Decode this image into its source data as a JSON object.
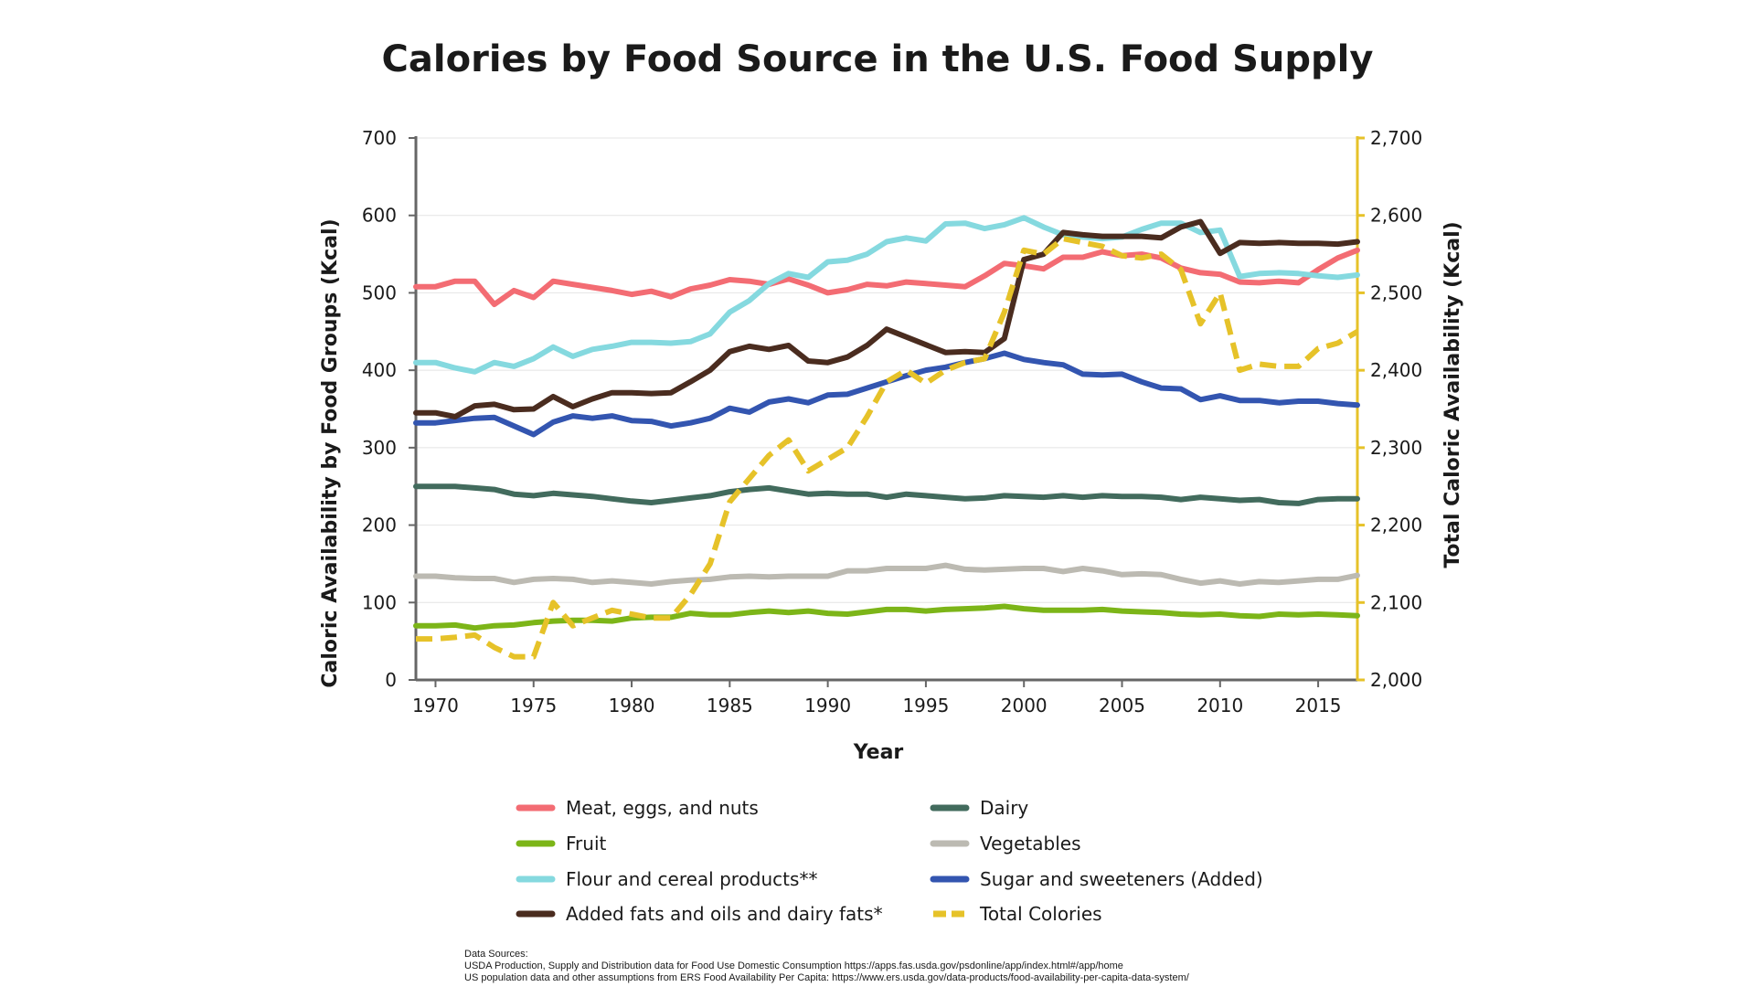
{
  "chart_data": {
    "type": "line",
    "title": "Calories by Food Source in the U.S. Food Supply",
    "xlabel": "Year",
    "ylabel": "Caloric Availability by Food Groups (Kcal)",
    "y2label": "Total Caloric Availability (Kcal)",
    "xlim": [
      1969,
      2017
    ],
    "ylim": [
      0,
      700
    ],
    "y2lim": [
      2000,
      2700
    ],
    "x_ticks": [
      1970,
      1975,
      1980,
      1985,
      1990,
      1995,
      2000,
      2005,
      2010,
      2015
    ],
    "y_ticks": [
      "0",
      "100",
      "200",
      "300",
      "400",
      "500",
      "600",
      "700"
    ],
    "y2_ticks": [
      "2,000",
      "2,100",
      "2,200",
      "2,300",
      "2,400",
      "2,500",
      "2,600",
      "2,700"
    ],
    "grid": true,
    "legend_position": "bottom",
    "x": [
      1969,
      1970,
      1971,
      1972,
      1973,
      1974,
      1975,
      1976,
      1977,
      1978,
      1979,
      1980,
      1981,
      1982,
      1983,
      1984,
      1985,
      1986,
      1987,
      1988,
      1989,
      1990,
      1991,
      1992,
      1993,
      1994,
      1995,
      1996,
      1997,
      1998,
      1999,
      2000,
      2001,
      2002,
      2003,
      2004,
      2005,
      2006,
      2007,
      2008,
      2009,
      2010,
      2011,
      2012,
      2013,
      2014,
      2015,
      2016,
      2017
    ],
    "series": [
      {
        "name": "Meat, eggs, and nuts",
        "color": "#f36c73",
        "axis": "left",
        "dashed": false,
        "values": [
          508,
          508,
          515,
          515,
          485,
          503,
          494,
          515,
          511,
          507,
          503,
          498,
          502,
          495,
          505,
          510,
          517,
          515,
          511,
          518,
          510,
          500,
          504,
          511,
          509,
          514,
          512,
          510,
          508,
          522,
          538,
          535,
          531,
          546,
          546,
          553,
          548,
          550,
          545,
          532,
          526,
          524,
          514,
          513,
          515,
          513,
          530,
          545,
          555
        ]
      },
      {
        "name": "Dairy",
        "color": "#426b5d",
        "axis": "left",
        "dashed": false,
        "values": [
          250,
          250,
          250,
          248,
          246,
          240,
          238,
          241,
          239,
          237,
          234,
          231,
          229,
          232,
          235,
          238,
          243,
          246,
          248,
          244,
          240,
          241,
          240,
          240,
          236,
          240,
          238,
          236,
          234,
          235,
          238,
          237,
          236,
          238,
          236,
          238,
          237,
          237,
          236,
          233,
          236,
          234,
          232,
          233,
          229,
          228,
          233,
          234,
          234
        ]
      },
      {
        "name": "Fruit",
        "color": "#7cb518",
        "axis": "left",
        "dashed": false,
        "values": [
          70,
          70,
          71,
          67,
          70,
          71,
          74,
          76,
          77,
          77,
          76,
          80,
          81,
          81,
          86,
          84,
          84,
          87,
          89,
          87,
          89,
          86,
          85,
          88,
          91,
          91,
          89,
          91,
          92,
          93,
          95,
          92,
          90,
          90,
          90,
          91,
          89,
          88,
          87,
          85,
          84,
          85,
          83,
          82,
          85,
          84,
          85,
          84,
          83
        ]
      },
      {
        "name": "Vegetables",
        "color": "#bcbab2",
        "axis": "left",
        "dashed": false,
        "values": [
          134,
          134,
          132,
          131,
          131,
          126,
          130,
          131,
          130,
          126,
          128,
          126,
          124,
          127,
          129,
          130,
          133,
          134,
          133,
          134,
          134,
          134,
          141,
          141,
          144,
          144,
          144,
          148,
          143,
          142,
          143,
          144,
          144,
          140,
          144,
          141,
          136,
          137,
          136,
          130,
          125,
          128,
          124,
          127,
          126,
          128,
          130,
          130,
          135
        ]
      },
      {
        "name": "Flour and cereal products**",
        "color": "#85d9df",
        "axis": "left",
        "dashed": false,
        "values": [
          410,
          410,
          403,
          398,
          410,
          405,
          415,
          430,
          418,
          427,
          431,
          436,
          436,
          435,
          437,
          447,
          475,
          490,
          512,
          525,
          520,
          540,
          542,
          550,
          566,
          571,
          567,
          589,
          590,
          583,
          588,
          597,
          585,
          575,
          572,
          570,
          572,
          582,
          590,
          590,
          578,
          581,
          521,
          525,
          526,
          525,
          522,
          520,
          523
        ]
      },
      {
        "name": "Sugar and sweeteners (Added)",
        "color": "#3355b0",
        "axis": "left",
        "dashed": false,
        "values": [
          332,
          332,
          335,
          338,
          339,
          328,
          317,
          333,
          341,
          338,
          341,
          335,
          334,
          328,
          332,
          338,
          351,
          346,
          359,
          363,
          358,
          368,
          369,
          377,
          385,
          393,
          400,
          404,
          410,
          415,
          422,
          414,
          410,
          407,
          395,
          394,
          395,
          385,
          377,
          376,
          362,
          367,
          361,
          361,
          358,
          360,
          360,
          357,
          355
        ]
      },
      {
        "name": "Added fats and oils and dairy fats*",
        "color": "#4a2c1f",
        "axis": "left",
        "dashed": false,
        "values": [
          345,
          345,
          340,
          354,
          356,
          349,
          350,
          366,
          353,
          363,
          371,
          371,
          370,
          371,
          385,
          400,
          424,
          431,
          427,
          432,
          412,
          410,
          417,
          432,
          453,
          443,
          433,
          423,
          424,
          423,
          441,
          543,
          550,
          578,
          575,
          573,
          573,
          573,
          571,
          585,
          592,
          551,
          565,
          564,
          565,
          564,
          564,
          563,
          566
        ]
      },
      {
        "name": "Total Colories",
        "color": "#e6c229",
        "axis": "right",
        "dashed": true,
        "values": [
          2053,
          2053,
          2055,
          2058,
          2042,
          2030,
          2030,
          2100,
          2070,
          2080,
          2090,
          2085,
          2080,
          2080,
          2110,
          2150,
          2230,
          2260,
          2290,
          2310,
          2270,
          2285,
          2300,
          2340,
          2385,
          2400,
          2383,
          2400,
          2410,
          2415,
          2475,
          2555,
          2550,
          2570,
          2565,
          2560,
          2548,
          2545,
          2550,
          2530,
          2460,
          2500,
          2400,
          2408,
          2405,
          2405,
          2428,
          2435,
          2450
        ]
      }
    ],
    "series_order_legend": [
      0,
      1,
      2,
      3,
      4,
      5,
      6,
      7
    ]
  },
  "sources": {
    "heading": "Data Sources:",
    "line1": "USDA Production, Supply and Distribution data for Food Use Domestic Consumption https://apps.fas.usda.gov/psdonline/app/index.html#/app/home",
    "line2": "US population data and other assumptions from ERS Food Availability Per Capita:  https://www.ers.usda.gov/data-products/food-availability-per-capita-data-system/"
  }
}
